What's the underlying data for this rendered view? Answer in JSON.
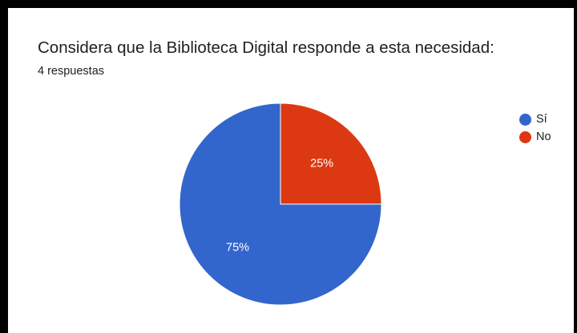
{
  "title": "Considera que la Biblioteca Digital responde a esta necesidad:",
  "subtitle": "4 respuestas",
  "colors": {
    "si": "#3366cc",
    "no": "#dc3912",
    "background": "#ffffff",
    "border": "#000000"
  },
  "chart_data": {
    "type": "pie",
    "title": "Considera que la Biblioteca Digital responde a esta necesidad:",
    "subtitle": "4 respuestas",
    "categories": [
      "Sí",
      "No"
    ],
    "values": [
      3,
      1
    ],
    "percent_labels": [
      "75%",
      "25%"
    ],
    "colors": [
      "#3366cc",
      "#dc3912"
    ],
    "legend_position": "right",
    "start_angle": "top, clockwise"
  },
  "legend": {
    "items": [
      {
        "label": "Sí",
        "color": "#3366cc"
      },
      {
        "label": "No",
        "color": "#dc3912"
      }
    ]
  }
}
